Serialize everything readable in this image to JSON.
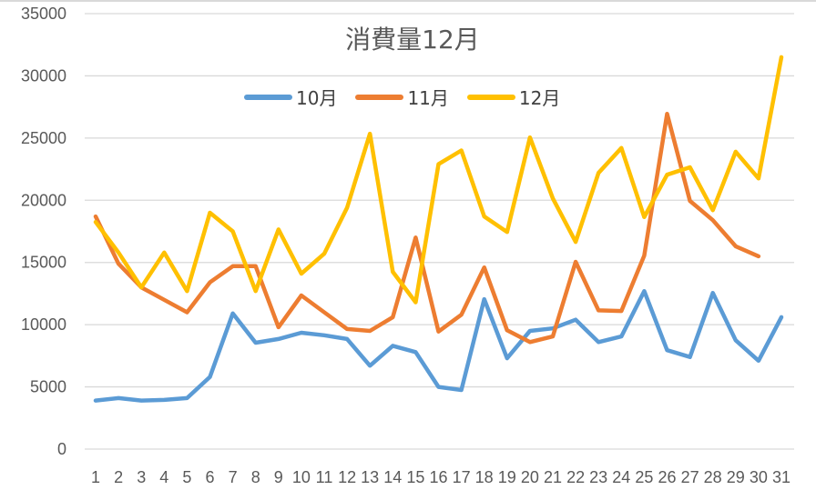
{
  "chart": {
    "title": "消費量12月",
    "legend": [
      {
        "label": "10月",
        "color": "#5b9bd5"
      },
      {
        "label": "11月",
        "color": "#ed7d31"
      },
      {
        "label": "12月",
        "color": "#ffc000"
      }
    ],
    "yticks": [
      "0",
      "5000",
      "10000",
      "15000",
      "20000",
      "25000",
      "30000",
      "35000"
    ],
    "xticks": [
      "1",
      "2",
      "3",
      "4",
      "5",
      "6",
      "7",
      "8",
      "9",
      "10",
      "11",
      "12",
      "13",
      "14",
      "15",
      "16",
      "17",
      "18",
      "19",
      "20",
      "21",
      "22",
      "23",
      "24",
      "25",
      "26",
      "27",
      "28",
      "29",
      "30",
      "31"
    ]
  },
  "chart_data": {
    "type": "line",
    "title": "消費量12月",
    "xlabel": "",
    "ylabel": "",
    "ylim": [
      0,
      35000
    ],
    "grid": true,
    "legend_position": "top",
    "x": [
      1,
      2,
      3,
      4,
      5,
      6,
      7,
      8,
      9,
      10,
      11,
      12,
      13,
      14,
      15,
      16,
      17,
      18,
      19,
      20,
      21,
      22,
      23,
      24,
      25,
      26,
      27,
      28,
      29,
      30,
      31
    ],
    "series": [
      {
        "name": "10月",
        "color": "#5b9bd5",
        "values": [
          3900,
          4100,
          3900,
          3950,
          4100,
          5800,
          10900,
          8550,
          8850,
          9350,
          9150,
          8850,
          6700,
          8300,
          7800,
          5000,
          4750,
          12050,
          7300,
          9500,
          9700,
          10400,
          8600,
          9050,
          12700,
          7950,
          7400,
          12550,
          8750,
          7100,
          10600
        ]
      },
      {
        "name": "11月",
        "color": "#ed7d31",
        "values": [
          18700,
          14900,
          13000,
          12000,
          11000,
          13400,
          14700,
          14700,
          9800,
          12350,
          11000,
          9650,
          9500,
          10600,
          17000,
          9450,
          10800,
          14600,
          9550,
          8600,
          9050,
          15050,
          11150,
          11100,
          15550,
          26950,
          19950,
          18400,
          16300,
          15500,
          null
        ]
      },
      {
        "name": "12月",
        "color": "#ffc000",
        "values": [
          18250,
          15800,
          13000,
          15800,
          12700,
          19000,
          17500,
          12700,
          17650,
          14100,
          15700,
          19400,
          25350,
          14250,
          11800,
          22900,
          24000,
          18700,
          17450,
          25050,
          20150,
          16650,
          22200,
          24200,
          18650,
          22050,
          22650,
          19200,
          23900,
          21750,
          31500
        ]
      }
    ]
  }
}
